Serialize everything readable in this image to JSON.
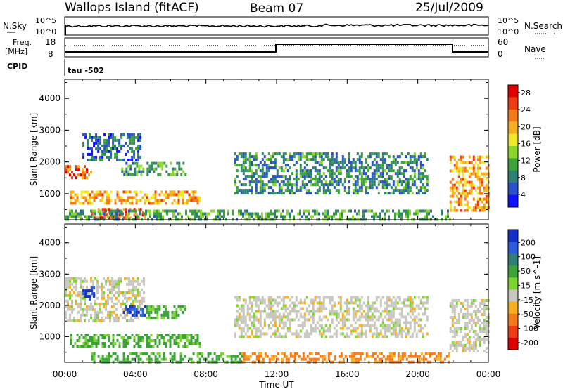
{
  "header": {
    "title": "Wallops Island (fitACF)",
    "beam": "Beam 07",
    "date": "25/Jul/2009"
  },
  "top_panel": {
    "left_label": "N.Sky",
    "right_label": "N.Search",
    "y_ticks": [
      "10^5",
      "10^0"
    ],
    "freq_label_1": "Freq.",
    "freq_label_2": "[MHz]",
    "freq_ticks": [
      "18",
      "8"
    ],
    "nave_label": "Nave",
    "nave_ticks": [
      "60",
      "0"
    ],
    "cpid_label": "CPID",
    "cpid_value": "tau -502"
  },
  "x_axis": {
    "ticks": [
      "00:00",
      "04:00",
      "08:00",
      "12:00",
      "16:00",
      "20:00",
      "00:00"
    ],
    "label": "Time UT"
  },
  "chart_data": [
    {
      "type": "heatmap",
      "name": "Power",
      "xlabel": "Time UT",
      "ylabel": "Slant Range [km]",
      "xlim": [
        0,
        24
      ],
      "ylim": [
        180,
        4600
      ],
      "y_ticks": [
        "1000",
        "2000",
        "3000",
        "4000"
      ],
      "colorbar_label": "Power [dB]",
      "colorbar_ticks": [
        "4",
        "8",
        "12",
        "16",
        "20",
        "24",
        "28"
      ],
      "colorbar_colors": [
        "#1010ff",
        "#2a52c8",
        "#2f7f74",
        "#3aa33a",
        "#8dd62b",
        "#f2e82a",
        "#f5b021",
        "#f57a1a",
        "#ee3c12",
        "#e00000"
      ],
      "features": [
        {
          "t0": 0.0,
          "t1": 1.5,
          "r0": 1500,
          "r1": 1900,
          "power_db": 26
        },
        {
          "t0": 1.0,
          "t1": 4.3,
          "r0": 2100,
          "r1": 2900,
          "power_db": 8
        },
        {
          "t0": 0.3,
          "t1": 7.6,
          "r0": 700,
          "r1": 1100,
          "power_db": 22
        },
        {
          "t0": 3.2,
          "t1": 6.8,
          "r0": 1600,
          "r1": 2000,
          "power_db": 12
        },
        {
          "t0": 1.5,
          "t1": 4.5,
          "r0": 250,
          "r1": 550,
          "power_db": 26
        },
        {
          "t0": 0.0,
          "t1": 21.8,
          "r0": 200,
          "r1": 500,
          "power_db": 12
        },
        {
          "t0": 9.6,
          "t1": 20.5,
          "r0": 1000,
          "r1": 2300,
          "power_db": 10
        },
        {
          "t0": 21.8,
          "t1": 24.0,
          "r0": 500,
          "r1": 2200,
          "power_db": 22
        }
      ]
    },
    {
      "type": "heatmap",
      "name": "Velocity",
      "xlabel": "Time UT",
      "ylabel": "Slant Range [km]",
      "xlim": [
        0,
        24
      ],
      "ylim": [
        180,
        4600
      ],
      "y_ticks": [
        "1000",
        "2000",
        "3000",
        "4000"
      ],
      "colorbar_label": "Velocity [m s^-1]",
      "colorbar_ticks": [
        "200",
        "100",
        "50",
        "15",
        "-15",
        "-50",
        "-100",
        "-200"
      ],
      "colorbar_colors": [
        "#1530c8",
        "#2b5bd8",
        "#2f7f74",
        "#3aa33a",
        "#7fd530",
        "#c8c8c0",
        "#f5b021",
        "#f57a1a",
        "#ee3c12",
        "#e00000"
      ],
      "features": [
        {
          "t0": 0.0,
          "t1": 4.5,
          "r0": 1500,
          "r1": 2900,
          "velocity": 0
        },
        {
          "t0": 1.0,
          "t1": 1.6,
          "r0": 2200,
          "r1": 2600,
          "velocity": 150
        },
        {
          "t0": 3.3,
          "t1": 4.6,
          "r0": 1650,
          "r1": 2000,
          "velocity": 150
        },
        {
          "t0": 4.6,
          "t1": 6.8,
          "r0": 1600,
          "r1": 2000,
          "velocity": 40
        },
        {
          "t0": 0.3,
          "t1": 7.6,
          "r0": 700,
          "r1": 1100,
          "velocity": 40
        },
        {
          "t0": 1.5,
          "t1": 10.0,
          "r0": 200,
          "r1": 500,
          "velocity": 40
        },
        {
          "t0": 10.0,
          "t1": 21.8,
          "r0": 200,
          "r1": 500,
          "velocity": -60
        },
        {
          "t0": 9.6,
          "t1": 20.5,
          "r0": 1000,
          "r1": 2300,
          "velocity": 0
        },
        {
          "t0": 21.8,
          "t1": 24.0,
          "r0": 500,
          "r1": 2200,
          "velocity": 0
        }
      ]
    }
  ]
}
